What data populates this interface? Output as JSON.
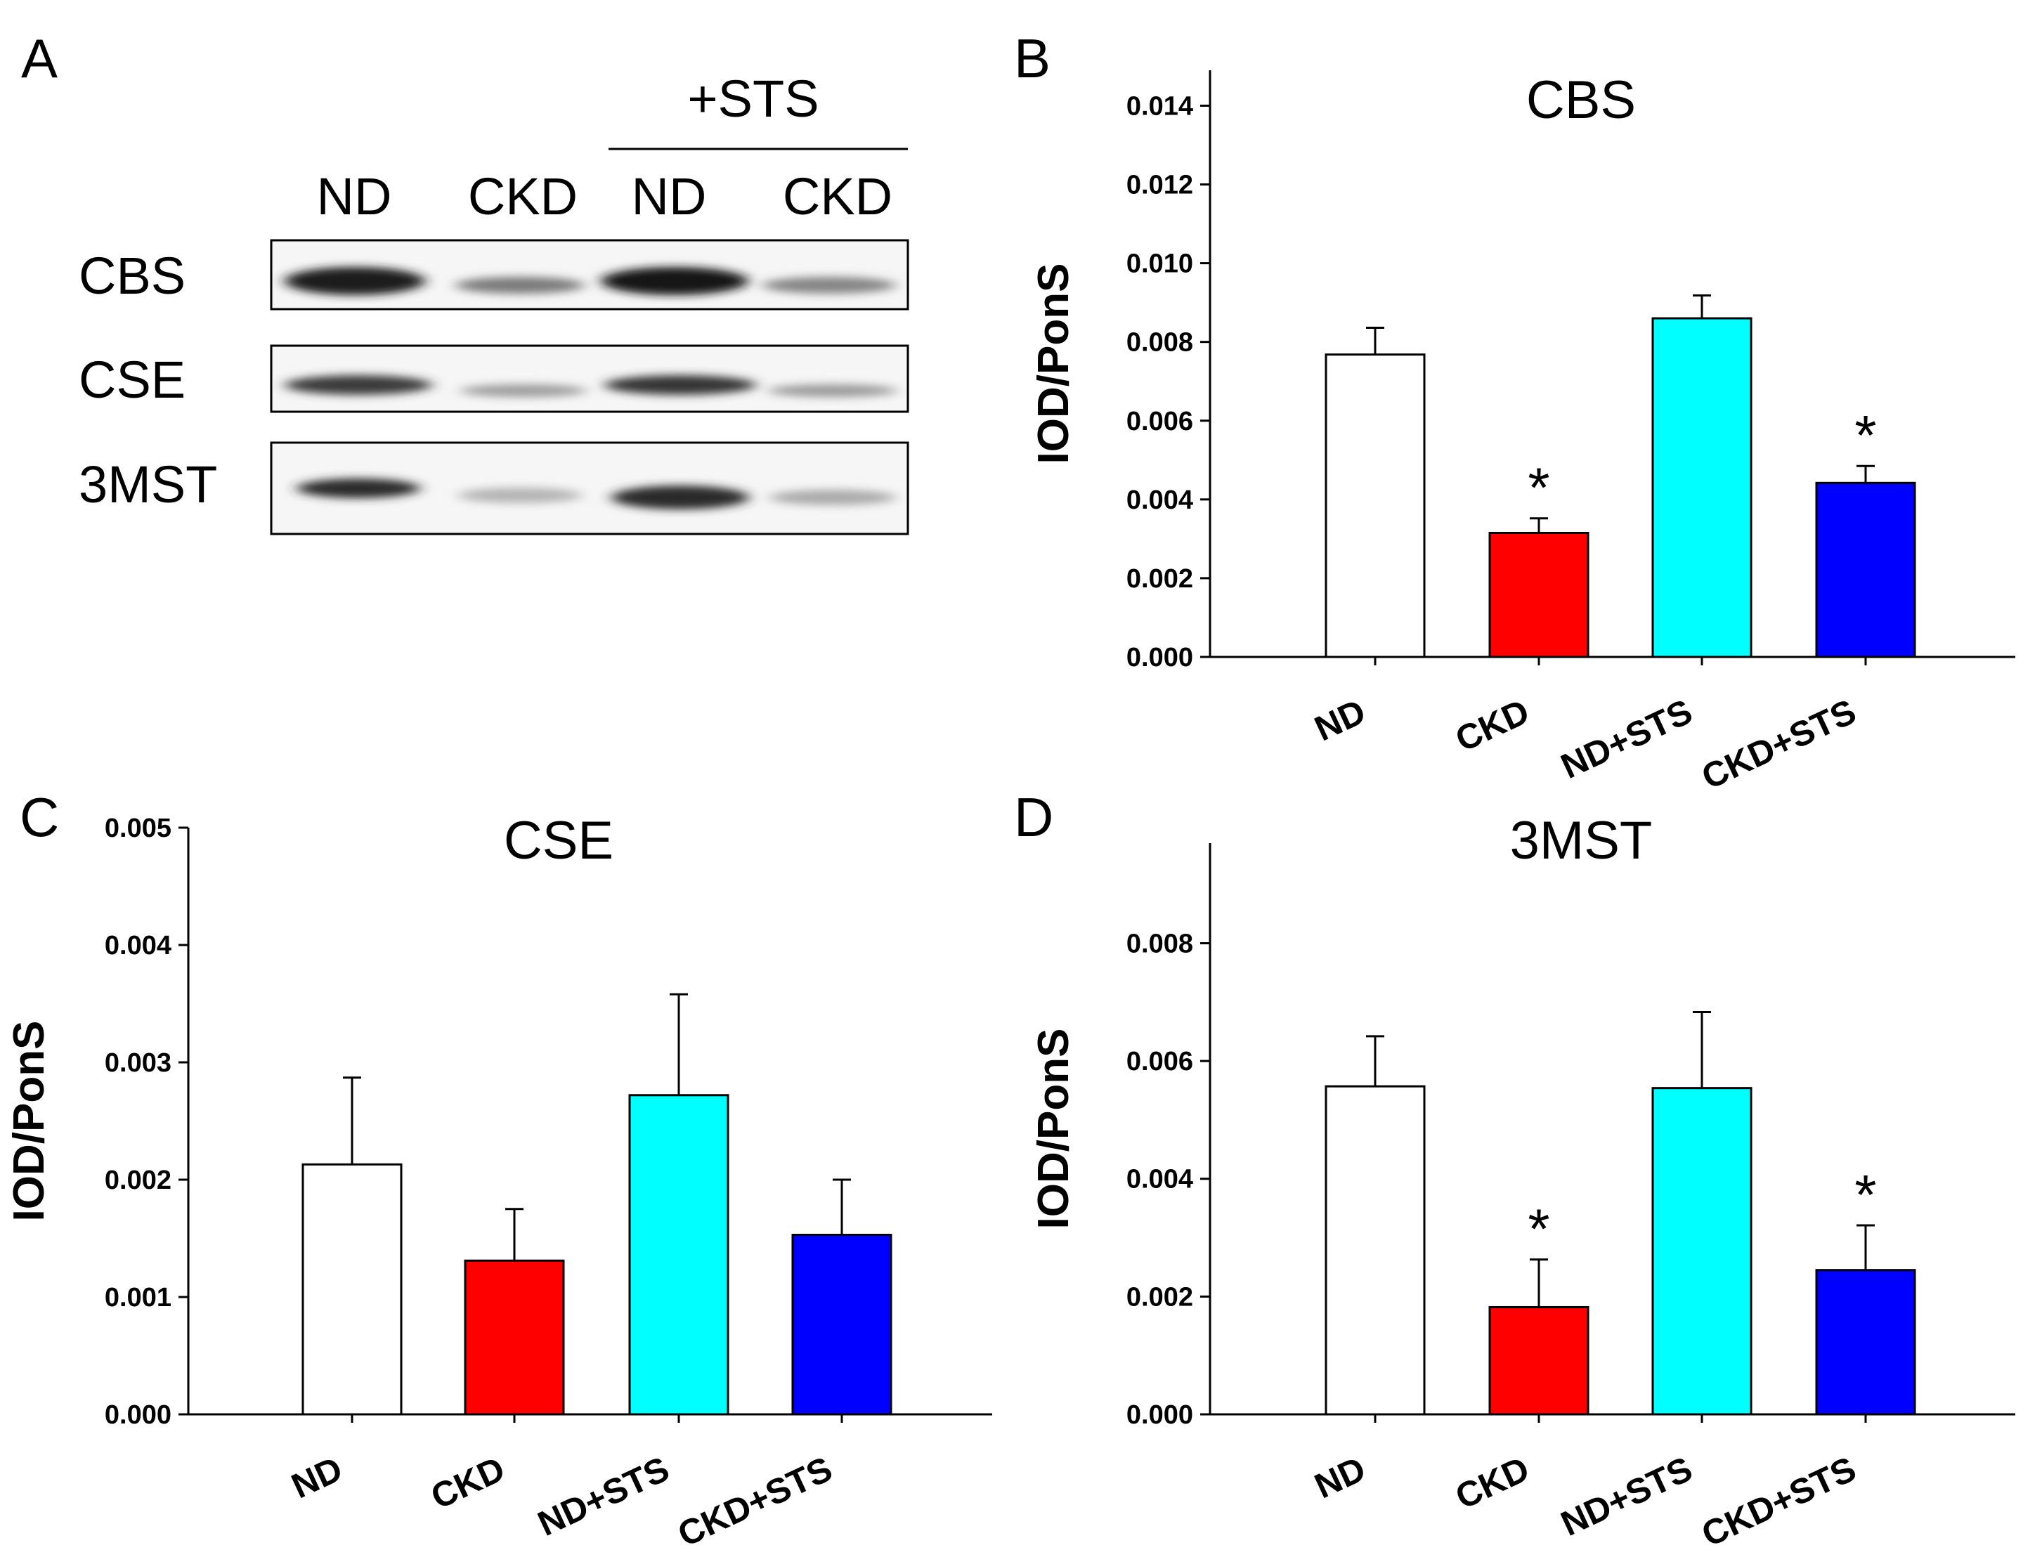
{
  "panel_a": {
    "label": "A",
    "sts_label": "+STS",
    "lanes": [
      "ND",
      "CKD",
      "ND",
      "CKD"
    ],
    "rows": [
      "CBS",
      "CSE",
      "3MST"
    ]
  },
  "chart_data": [
    {
      "panel": "B",
      "type": "bar",
      "title": "CBS",
      "ylabel": "IOD/PonS",
      "xlabel": "",
      "categories": [
        "ND",
        "CKD",
        "ND+STS",
        "CKD+STS"
      ],
      "values": [
        0.00768,
        0.00315,
        0.0086,
        0.00442
      ],
      "errors": [
        0.00068,
        0.00037,
        0.00058,
        0.00043
      ],
      "significant": [
        "",
        "*",
        "",
        "*"
      ],
      "colors": [
        "#ffffff",
        "#ff0000",
        "#00ffff",
        "#0000ff"
      ],
      "ylim": [
        0,
        0.0149
      ],
      "yticks": [
        "0.000",
        "0.002",
        "0.004",
        "0.006",
        "0.008",
        "0.010",
        "0.012",
        "0.014"
      ],
      "grid": false
    },
    {
      "panel": "C",
      "type": "bar",
      "title": "CSE",
      "ylabel": "IOD/PonS",
      "xlabel": "",
      "categories": [
        "ND",
        "CKD",
        "ND+STS",
        "CKD+STS"
      ],
      "values": [
        0.00213,
        0.00131,
        0.00272,
        0.00153
      ],
      "errors": [
        0.00074,
        0.00044,
        0.00086,
        0.00047
      ],
      "significant": [
        "",
        "",
        "",
        ""
      ],
      "colors": [
        "#ffffff",
        "#ff0000",
        "#00ffff",
        "#0000ff"
      ],
      "ylim": [
        0,
        0.005
      ],
      "yticks": [
        "0.000",
        "0.001",
        "0.002",
        "0.003",
        "0.004",
        "0.005"
      ],
      "grid": false
    },
    {
      "panel": "D",
      "type": "bar",
      "title": "3MST",
      "ylabel": "IOD/PonS",
      "xlabel": "",
      "categories": [
        "ND",
        "CKD",
        "ND+STS",
        "CKD+STS"
      ],
      "values": [
        0.00557,
        0.00182,
        0.00554,
        0.00245
      ],
      "errors": [
        0.00085,
        0.00081,
        0.00129,
        0.00076
      ],
      "significant": [
        "",
        "*",
        "",
        "*"
      ],
      "colors": [
        "#ffffff",
        "#ff0000",
        "#00ffff",
        "#0000ff"
      ],
      "ylim": [
        0,
        0.0097
      ],
      "yticks": [
        "0.000",
        "0.002",
        "0.004",
        "0.006",
        "0.008"
      ],
      "grid": false
    }
  ]
}
